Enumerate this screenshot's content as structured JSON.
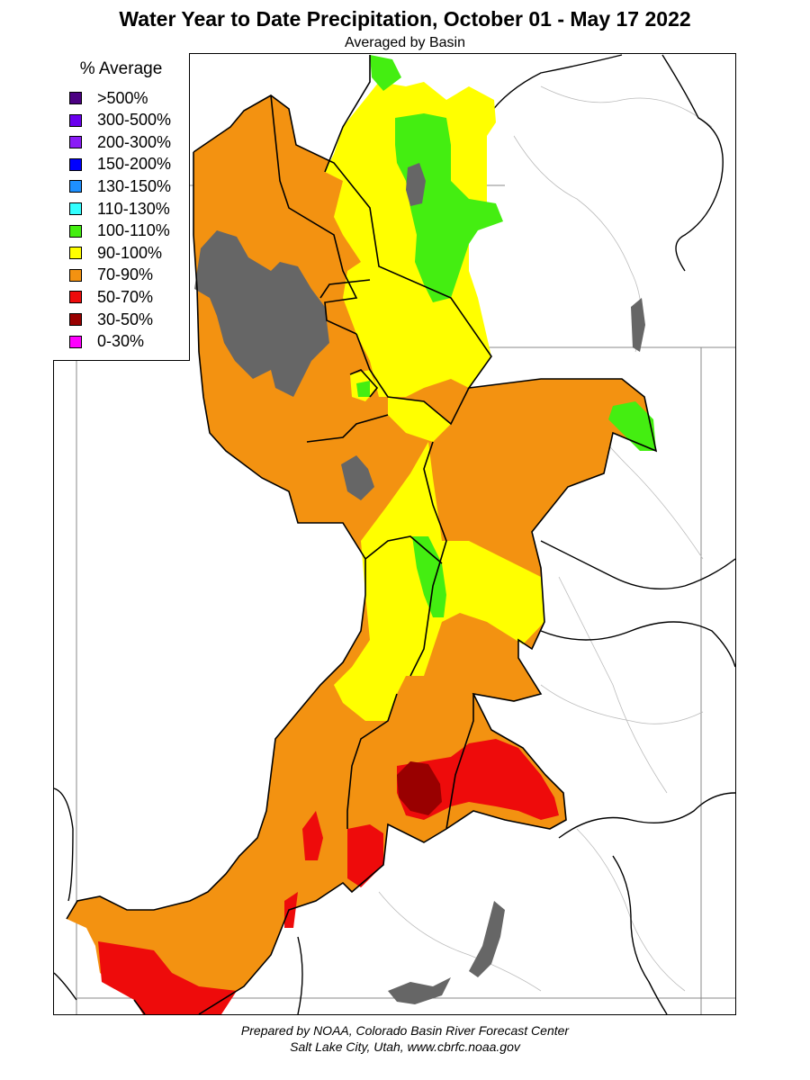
{
  "title": "Water Year to Date Precipitation, October 01  - May 17 2022",
  "subtitle": "Averaged by Basin",
  "legend": {
    "title": "% Average",
    "items": [
      {
        "label": ">500%",
        "color": "#4b0082"
      },
      {
        "label": "300-500%",
        "color": "#6a00ee"
      },
      {
        "label": "200-300%",
        "color": "#8a1cf7"
      },
      {
        "label": "150-200%",
        "color": "#0000ff"
      },
      {
        "label": "130-150%",
        "color": "#1e90ff"
      },
      {
        "label": "110-130%",
        "color": "#33ffff"
      },
      {
        "label": "100-110%",
        "color": "#44ee11"
      },
      {
        "label": "90-100%",
        "color": "#ffff00"
      },
      {
        "label": "70-90%",
        "color": "#f39211"
      },
      {
        "label": "50-70%",
        "color": "#ee0b0b"
      },
      {
        "label": "30-50%",
        "color": "#990000"
      },
      {
        "label": "0-30%",
        "color": "#ff00ff"
      }
    ]
  },
  "map": {
    "colors": {
      "lake": "#666666",
      "boundary": "#000000",
      "border": "#888888",
      "river": "#999999"
    }
  },
  "footer": {
    "line1": "Prepared by NOAA, Colorado Basin River Forecast Center",
    "line2": "Salt Lake City, Utah, www.cbrfc.noaa.gov"
  }
}
